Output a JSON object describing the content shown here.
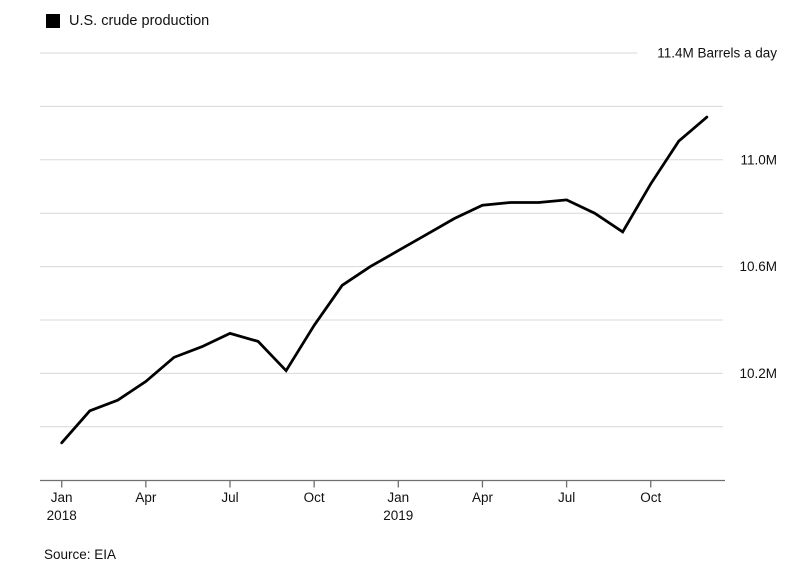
{
  "legend": {
    "label": "U.S. crude production",
    "swatch_color": "#000000"
  },
  "source": {
    "text": "Source: EIA"
  },
  "colors": {
    "line": "#000000",
    "grid": "#d8d8d8",
    "axis": "#6f6f6f",
    "text": "#111111",
    "background": "#ffffff"
  },
  "chart_data": {
    "type": "line",
    "title": "U.S. crude production",
    "unit": "Barrels a day",
    "grid": true,
    "legend_position": "top-left",
    "ylim": [
      9.85,
      11.45
    ],
    "x": [
      "Jan 2018",
      "Feb 2018",
      "Mar 2018",
      "Apr 2018",
      "May 2018",
      "Jun 2018",
      "Jul 2018",
      "Aug 2018",
      "Sep 2018",
      "Oct 2018",
      "Nov 2018",
      "Dec 2018",
      "Jan 2019",
      "Feb 2019",
      "Mar 2019",
      "Apr 2019",
      "May 2019",
      "Jun 2019",
      "Jul 2019",
      "Aug 2019",
      "Sep 2019",
      "Oct 2019",
      "Nov 2019",
      "Dec 2019"
    ],
    "series": [
      {
        "name": "U.S. crude production",
        "unit": "M barrels a day",
        "values": [
          9.94,
          10.06,
          10.1,
          10.17,
          10.26,
          10.3,
          10.35,
          10.32,
          10.21,
          10.38,
          10.53,
          10.6,
          10.66,
          10.72,
          10.78,
          10.83,
          10.84,
          10.84,
          10.85,
          10.8,
          10.73,
          10.91,
          11.07,
          11.16
        ]
      }
    ],
    "y_ticks": [
      {
        "value": 11.4,
        "label": "11.4M Barrels a day"
      },
      {
        "value": 11.2,
        "label": ""
      },
      {
        "value": 11.0,
        "label": "11.0M"
      },
      {
        "value": 10.8,
        "label": ""
      },
      {
        "value": 10.6,
        "label": "10.6M"
      },
      {
        "value": 10.4,
        "label": ""
      },
      {
        "value": 10.2,
        "label": "10.2M"
      },
      {
        "value": 10.0,
        "label": ""
      }
    ],
    "x_ticks": [
      {
        "month_index": 0,
        "label": "Jan",
        "year": "2018"
      },
      {
        "month_index": 3,
        "label": "Apr",
        "year": ""
      },
      {
        "month_index": 6,
        "label": "Jul",
        "year": ""
      },
      {
        "month_index": 9,
        "label": "Oct",
        "year": ""
      },
      {
        "month_index": 12,
        "label": "Jan",
        "year": "2019"
      },
      {
        "month_index": 15,
        "label": "Apr",
        "year": ""
      },
      {
        "month_index": 18,
        "label": "Jul",
        "year": ""
      },
      {
        "month_index": 21,
        "label": "Oct",
        "year": ""
      }
    ]
  }
}
